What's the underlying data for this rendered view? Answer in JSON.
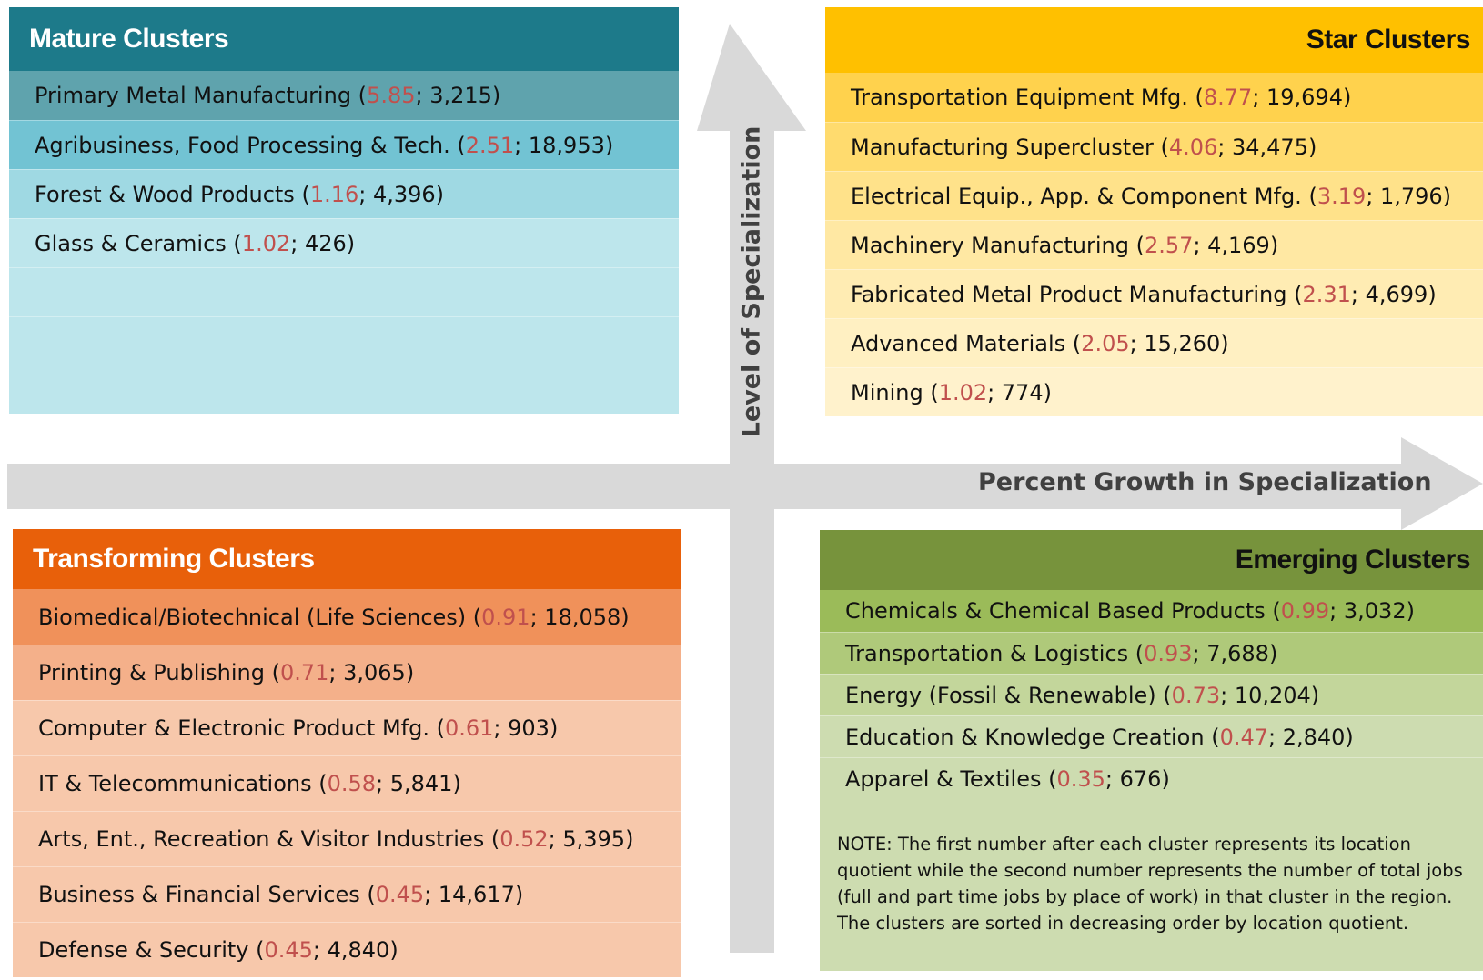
{
  "axes": {
    "vertical": "Level of Specialization",
    "horizontal": "Percent Growth in Specialization"
  },
  "quadrants": [
    {
      "title": "Mature Clusters",
      "items": [
        [
          "Primary Metal Manufacturing (",
          "5.85",
          "; 3,215)"
        ],
        [
          "Agribusiness, Food Processing & Tech. (",
          "2.51",
          "; 18,953)"
        ],
        [
          "Forest & Wood Products (",
          "1.16",
          "; 4,396)"
        ],
        [
          "Glass & Ceramics (",
          "1.02",
          "; 426)"
        ]
      ]
    },
    {
      "title": "Star Clusters",
      "items": [
        [
          "Transportation Equipment Mfg. (",
          "8.77",
          "; 19,694)"
        ],
        [
          "Manufacturing Supercluster (",
          "4.06",
          "; 34,475)"
        ],
        [
          "Electrical Equip., App. & Component Mfg. (",
          "3.19",
          "; 1,796)"
        ],
        [
          "Machinery Manufacturing (",
          "2.57",
          "; 4,169)"
        ],
        [
          "Fabricated Metal Product Manufacturing (",
          "2.31",
          "; 4,699)"
        ],
        [
          "Advanced Materials (",
          "2.05",
          "; 15,260)"
        ],
        [
          "Mining (",
          "1.02",
          "; 774)"
        ]
      ]
    },
    {
      "title": "Transforming Clusters",
      "items": [
        [
          "Biomedical/Biotechnical (Life Sciences) (",
          "0.91",
          "; 18,058)"
        ],
        [
          "Printing & Publishing (",
          "0.71",
          "; 3,065)"
        ],
        [
          "Computer & Electronic Product Mfg. (",
          "0.61",
          "; 903)"
        ],
        [
          "IT & Telecommunications (",
          "0.58",
          "; 5,841)"
        ],
        [
          "Arts, Ent., Recreation & Visitor Industries (",
          "0.52",
          "; 5,395)"
        ],
        [
          "Business & Financial Services (",
          "0.45",
          "; 14,617)"
        ],
        [
          "Defense & Security (",
          "0.45",
          "; 4,840)"
        ]
      ]
    },
    {
      "title": "Emerging Clusters",
      "items": [
        [
          "Chemicals & Chemical Based Products (",
          "0.99",
          "; 3,032)"
        ],
        [
          "Transportation & Logistics (",
          "0.93",
          "; 7,688)"
        ],
        [
          "Energy (Fossil & Renewable) (",
          "0.73",
          "; 10,204)"
        ],
        [
          "Education & Knowledge Creation (",
          "0.47",
          "; 2,840)"
        ],
        [
          "Apparel & Textiles (",
          "0.35",
          "; 676)"
        ]
      ]
    }
  ],
  "note": "NOTE:  The first number after each cluster represents its location quotient while the second number represents the number of total jobs (full and part time jobs by place of work) in that cluster in the region. The clusters are sorted in decreasing order by location quotient."
}
